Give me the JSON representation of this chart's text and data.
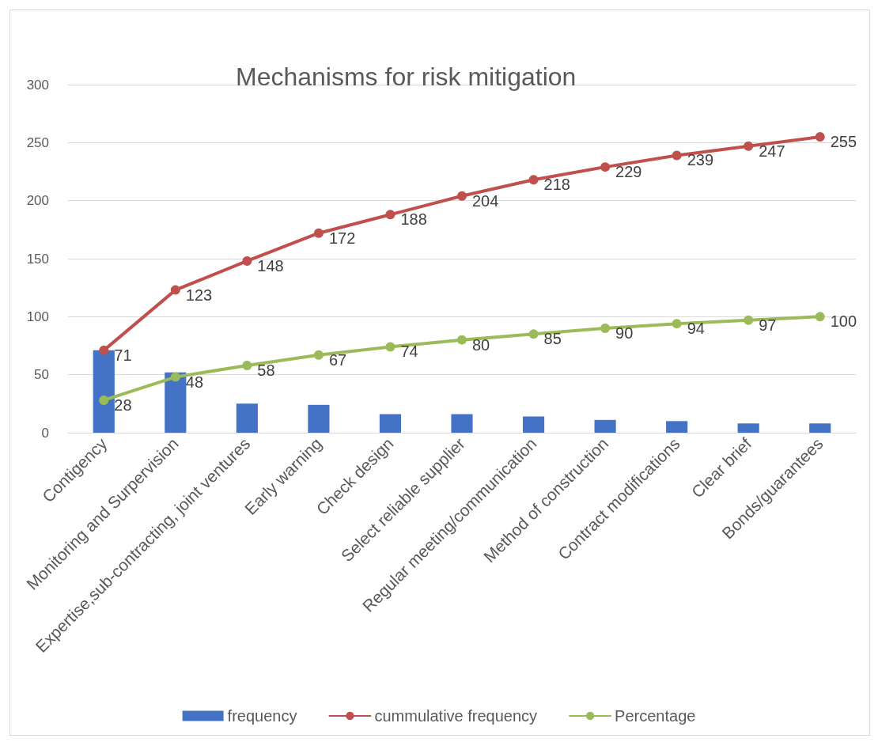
{
  "chart_data": {
    "type": "bar",
    "title": "Mechanisms for risk mitigation",
    "categories": [
      "Contigency",
      "Monitoring and Surpervision",
      "Expertise,sub-contracting, joint ventures",
      "Early warning",
      "Check design",
      "Select reliable supplier",
      "Regular meeting/communication",
      "Method of construction",
      "Contract modifications",
      "Clear brief",
      "Bonds/guarantees"
    ],
    "series": [
      {
        "name": "frequency",
        "color": "#4472c4",
        "values": [
          71,
          52,
          25,
          24,
          16,
          16,
          14,
          11,
          10,
          8,
          8
        ]
      },
      {
        "name": "cummulative frequency",
        "type": "line",
        "color": "#c0504d",
        "values": [
          71,
          123,
          148,
          172,
          188,
          204,
          218,
          229,
          239,
          247,
          255
        ],
        "value_labels": [
          "71",
          "123",
          "148",
          "172",
          "188",
          "204",
          "218",
          "229",
          "239",
          "247",
          "255"
        ]
      },
      {
        "name": "Percentage",
        "type": "line",
        "color": "#9bbb59",
        "values": [
          28,
          48,
          58,
          67,
          74,
          80,
          85,
          90,
          94,
          97,
          100
        ],
        "value_labels": [
          "28",
          "48",
          "58",
          "67",
          "74",
          "80",
          "85",
          "90",
          "94",
          "97",
          "100"
        ]
      }
    ],
    "ylim": [
      0,
      300
    ],
    "yticks": [
      0,
      50,
      100,
      150,
      200,
      250,
      300
    ],
    "grid": "y",
    "legend": "bottom",
    "marker": "circle"
  }
}
